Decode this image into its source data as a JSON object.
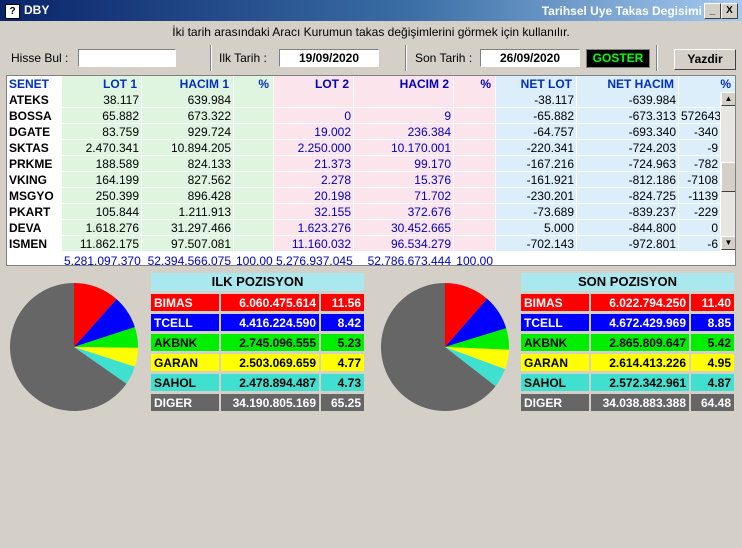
{
  "window": {
    "app_icon": "?",
    "app_title": "DBY",
    "title": "Tarihsel Uye Takas Degisimi",
    "minimize_label": "_",
    "close_label": "X"
  },
  "info_text": "İki tarih arasındaki  Aracı Kurumun takas değişimlerini görmek için kullanılır.",
  "toolbar": {
    "search_label": "Hisse Bul :",
    "search_value": "",
    "start_label": "Ilk Tarih :",
    "start_date": "19/09/2020",
    "end_label": "Son Tarih :",
    "end_date": "26/09/2020",
    "show_button": "GOSTER",
    "print_button": "Yazdir"
  },
  "table": {
    "columns": [
      "SENET",
      "LOT 1",
      "HACIM 1",
      "%",
      "LOT 2",
      "HACIM 2",
      "%",
      "NET LOT",
      "NET HACIM",
      "%"
    ],
    "rows": [
      [
        "ATEKS",
        "38.117",
        "639.984",
        "",
        "",
        "",
        "",
        "-38.117",
        "-639.984",
        ""
      ],
      [
        "BOSSA",
        "65.882",
        "673.322",
        "",
        "0",
        "9",
        "",
        "-65.882",
        "-673.313",
        "572643"
      ],
      [
        "DGATE",
        "83.759",
        "929.724",
        "",
        "19.002",
        "236.384",
        "",
        "-64.757",
        "-693.340",
        "-340"
      ],
      [
        "SKTAS",
        "2.470.341",
        "10.894.205",
        "",
        "2.250.000",
        "10.170.001",
        "",
        "-220.341",
        "-724.203",
        "-9"
      ],
      [
        "PRKME",
        "188.589",
        "824.133",
        "",
        "21.373",
        "99.170",
        "",
        "-167.216",
        "-724.963",
        "-782"
      ],
      [
        "VKING",
        "164.199",
        "827.562",
        "",
        "2.278",
        "15.376",
        "",
        "-161.921",
        "-812.186",
        "-7108"
      ],
      [
        "MSGYO",
        "250.399",
        "896.428",
        "",
        "20.198",
        "71.702",
        "",
        "-230.201",
        "-824.725",
        "-1139"
      ],
      [
        "PKART",
        "105.844",
        "1.211.913",
        "",
        "32.155",
        "372.676",
        "",
        "-73.689",
        "-839.237",
        "-229"
      ],
      [
        "DEVA",
        "1.618.276",
        "31.297.466",
        "",
        "1.623.276",
        "30.452.665",
        "",
        "5.000",
        "-844.800",
        "0"
      ],
      [
        "ISMEN",
        "11.862.175",
        "97.507.081",
        "",
        "11.160.032",
        "96.534.279",
        "",
        "-702.143",
        "-972.801",
        "-6"
      ]
    ],
    "totals": [
      "",
      "5.281.097.370",
      "52.394.566.075",
      "100,00",
      "5.276.937.045",
      "52.786.673.444",
      "100,00",
      "",
      "",
      ""
    ]
  },
  "first_position": {
    "title": "ILK POZISYON",
    "rows": [
      {
        "name": "BIMAS",
        "value": "6.060.475.614",
        "pct": "11.56",
        "pct_num": 11.56,
        "color": "#ff0000",
        "text": "#ffffff"
      },
      {
        "name": "TCELL",
        "value": "4.416.224.590",
        "pct": "8.42",
        "pct_num": 8.42,
        "color": "#0000ff",
        "text": "#ffffff"
      },
      {
        "name": "AKBNK",
        "value": "2.745.096.555",
        "pct": "5.23",
        "pct_num": 5.23,
        "color": "#00ee00",
        "text": "#000000"
      },
      {
        "name": "GARAN",
        "value": "2.503.069.659",
        "pct": "4.77",
        "pct_num": 4.77,
        "color": "#ffff00",
        "text": "#000000"
      },
      {
        "name": "SAHOL",
        "value": "2.478.894.487",
        "pct": "4.73",
        "pct_num": 4.73,
        "color": "#40e0d0",
        "text": "#000000"
      },
      {
        "name": "DIGER",
        "value": "34.190.805.169",
        "pct": "65.25",
        "pct_num": 65.25,
        "color": "#666666",
        "text": "#ffffff"
      }
    ]
  },
  "last_position": {
    "title": "SON POZISYON",
    "rows": [
      {
        "name": "BIMAS",
        "value": "6.022.794.250",
        "pct": "11.40",
        "pct_num": 11.4,
        "color": "#ff0000",
        "text": "#ffffff"
      },
      {
        "name": "TCELL",
        "value": "4.672.429.969",
        "pct": "8.85",
        "pct_num": 8.85,
        "color": "#0000ff",
        "text": "#ffffff"
      },
      {
        "name": "AKBNK",
        "value": "2.865.809.647",
        "pct": "5.42",
        "pct_num": 5.42,
        "color": "#00ee00",
        "text": "#000000"
      },
      {
        "name": "GARAN",
        "value": "2.614.413.226",
        "pct": "4.95",
        "pct_num": 4.95,
        "color": "#ffff00",
        "text": "#000000"
      },
      {
        "name": "SAHOL",
        "value": "2.572.342.961",
        "pct": "4.87",
        "pct_num": 4.87,
        "color": "#40e0d0",
        "text": "#000000"
      },
      {
        "name": "DIGER",
        "value": "34.038.883.388",
        "pct": "64.48",
        "pct_num": 64.48,
        "color": "#666666",
        "text": "#ffffff"
      }
    ]
  },
  "icons": {
    "scroll_up": "up-arrow-icon",
    "scroll_down": "down-arrow-icon"
  }
}
